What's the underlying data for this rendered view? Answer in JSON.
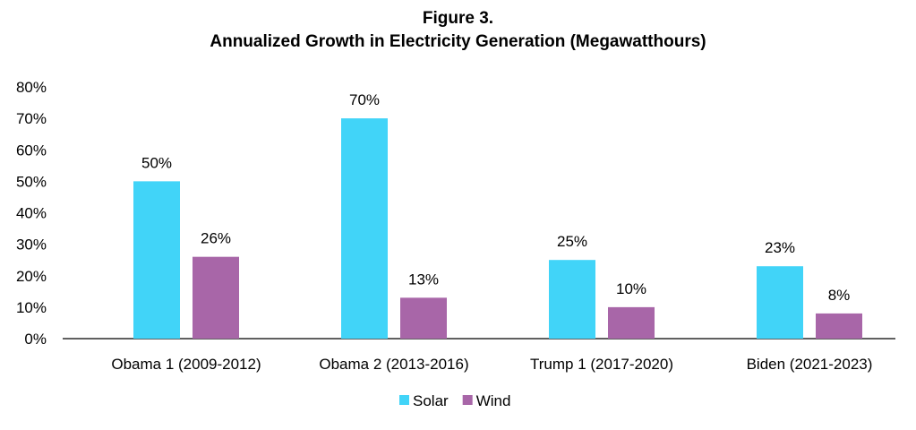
{
  "chart_data": {
    "type": "bar",
    "title": "Figure 3.",
    "subtitle": "Annualized Growth in Electricity Generation (Megawatthours)",
    "categories": [
      "Obama 1 (2009-2012)",
      "Obama 2 (2013-2016)",
      "Trump 1 (2017-2020)",
      "Biden (2021-2023)"
    ],
    "series": [
      {
        "name": "Solar",
        "color": "#41D4F8",
        "values": [
          50,
          70,
          25,
          23
        ],
        "labels": [
          "50%",
          "70%",
          "25%",
          "23%"
        ]
      },
      {
        "name": "Wind",
        "color": "#A866A8",
        "values": [
          26,
          13,
          10,
          8
        ],
        "labels": [
          "26%",
          "13%",
          "10%",
          "8%"
        ]
      }
    ],
    "ylim": [
      0,
      80
    ],
    "yticks": [
      "0%",
      "10%",
      "20%",
      "30%",
      "40%",
      "50%",
      "60%",
      "70%",
      "80%"
    ],
    "xlabel": "",
    "ylabel": "",
    "grid": false,
    "legend": "bottom"
  }
}
